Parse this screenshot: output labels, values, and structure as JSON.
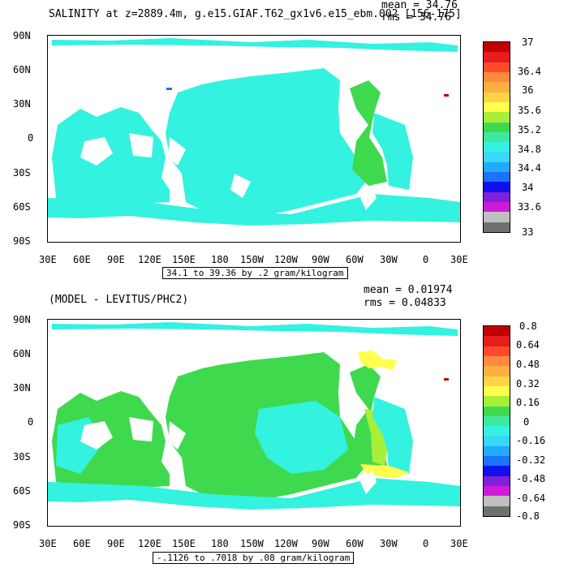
{
  "panel1": {
    "title": "SALINITY at z=2889.4m, g.e15.GIAF.T62_gx1v6.e15_ebm.002 [156-175]",
    "stats": {
      "mean": "mean = 34.76",
      "rms": "rms = 34.76"
    },
    "lat_labels": [
      "90N",
      "60N",
      "30N",
      "0",
      "30S",
      "60S",
      "90S"
    ],
    "lon_labels": [
      "30E",
      "60E",
      "90E",
      "120E",
      "150E",
      "180",
      "150W",
      "120W",
      "90W",
      "60W",
      "30W",
      "0",
      "30E"
    ],
    "range_label": "34.1 to 39.36 by .2 gram/kilogram",
    "colorbar_labels": [
      "37",
      "36.4",
      "36",
      "35.6",
      "35.2",
      "34.8",
      "34.4",
      "34",
      "33.6",
      "33"
    ],
    "colors": [
      "#c00000",
      "#e81c1c",
      "#ff4b2b",
      "#ff8a3d",
      "#ffae42",
      "#ffd447",
      "#ffff4d",
      "#a8ef3a",
      "#3fd94e",
      "#3ee8a0",
      "#33f2e0",
      "#38d8f8",
      "#22aaff",
      "#1a72ff",
      "#1010ee",
      "#8020d8",
      "#d01ad8",
      "#c0c0c0",
      "#707070"
    ],
    "ocean_color": "#33f2e0",
    "atlantic_color": "#3fd94e"
  },
  "panel2": {
    "title": "(MODEL - LEVITUS/PHC2)",
    "stats": {
      "mean": "mean = 0.01974",
      "rms": "rms = 0.04833"
    },
    "lat_labels": [
      "90N",
      "60N",
      "30N",
      "0",
      "30S",
      "60S",
      "90S"
    ],
    "lon_labels": [
      "30E",
      "60E",
      "90E",
      "120E",
      "150E",
      "180",
      "150W",
      "120W",
      "90W",
      "60W",
      "30W",
      "0",
      "30E"
    ],
    "range_label": "-.1126 to .7018 by .08 gram/kilogram",
    "colorbar_labels": [
      "0.8",
      "0.64",
      "0.48",
      "0.32",
      "0.16",
      "0",
      "-0.16",
      "-0.32",
      "-0.48",
      "-0.64",
      "-0.8"
    ],
    "colors": [
      "#c00000",
      "#e81c1c",
      "#ff4b2b",
      "#ff8a3d",
      "#ffae42",
      "#ffd447",
      "#ffff4d",
      "#a8ef3a",
      "#3fd94e",
      "#3ee8a0",
      "#33f2e0",
      "#38d8f8",
      "#22aaff",
      "#1a72ff",
      "#1010ee",
      "#8020d8",
      "#d01ad8",
      "#c0c0c0",
      "#707070"
    ],
    "ocean_color": "#33f2e0",
    "atlantic_color": "#3fd94e"
  }
}
